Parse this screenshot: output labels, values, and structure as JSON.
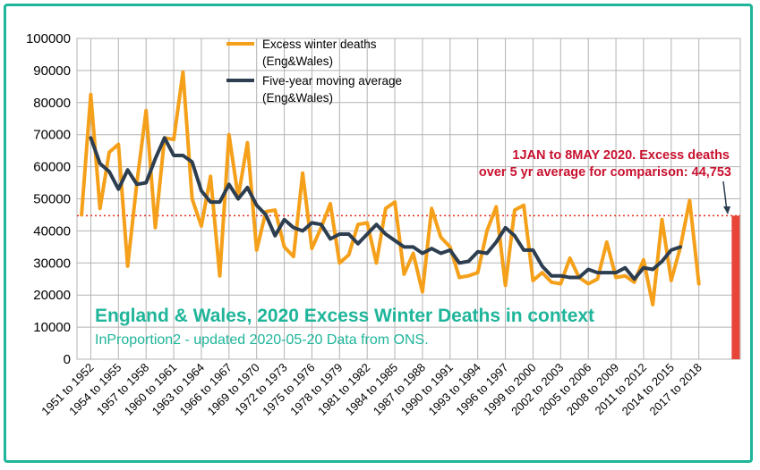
{
  "chart_data": {
    "type": "line",
    "title": "England & Wales, 2020 Excess Winter Deaths in context",
    "subtitle": "InProportion2 - updated 2020-05-20 Data from ONS.",
    "ylim": [
      0,
      100000
    ],
    "y_ticks": [
      "0",
      "10000",
      "20000",
      "30000",
      "40000",
      "50000",
      "60000",
      "70000",
      "80000",
      "90000",
      "100000"
    ],
    "grid": true,
    "legend_position": "top-center",
    "x_tick_labels": [
      "1951 to 1952",
      "1954 to 1955",
      "1957 to 1958",
      "1960 to 1961",
      "1963 to 1964",
      "1966 to 1967",
      "1969 to 1970",
      "1972 to 1973",
      "1975 to 1976",
      "1978 to 1979",
      "1981 to 1982",
      "1984 to 1985",
      "1987 to 1988",
      "1990 to 1991",
      "1993 to 1994",
      "1996 to 1997",
      "1999 to 2000",
      "2002 to 2003",
      "2005 to 2006",
      "2008 to 2009",
      "2011 to 2012",
      "2014 to 2015",
      "2017 to 2018"
    ],
    "x_start_year": 1950,
    "series": [
      {
        "name": "Excess winter deaths (Eng&Wales)",
        "name_lines": [
          "Excess winter deaths",
          "(Eng&Wales)"
        ],
        "color": "#f5a01a",
        "start_index": 0,
        "values": [
          45000,
          82500,
          47000,
          64500,
          67000,
          29000,
          55000,
          77500,
          41000,
          69000,
          68500,
          89500,
          50000,
          41500,
          57000,
          26000,
          70000,
          50500,
          67500,
          34000,
          46000,
          46500,
          35000,
          32000,
          58000,
          34500,
          41000,
          48500,
          30000,
          32500,
          42000,
          42500,
          30000,
          47000,
          49000,
          26500,
          33000,
          21000,
          47000,
          38000,
          35000,
          25500,
          26000,
          27000,
          40000,
          47500,
          23000,
          46500,
          48000,
          24500,
          27000,
          24000,
          23500,
          31500,
          25500,
          23500,
          25000,
          36500,
          25500,
          26000,
          24000,
          31000,
          17000,
          43500,
          24500,
          35000,
          49500,
          23500
        ]
      },
      {
        "name": "Five-year moving average (Eng&Wales)",
        "name_lines": [
          "Five-year moving average",
          "(Eng&Wales)"
        ],
        "color": "#2d3e50",
        "start_index": 1,
        "values": [
          69000,
          61000,
          58500,
          53000,
          59000,
          54500,
          55000,
          62500,
          69000,
          63500,
          63500,
          61500,
          52500,
          49000,
          49000,
          54500,
          50000,
          53500,
          48000,
          45000,
          38500,
          43500,
          41000,
          40000,
          42500,
          42000,
          37500,
          39000,
          39000,
          36000,
          39000,
          42000,
          39000,
          37000,
          35000,
          35000,
          33000,
          34500,
          33000,
          34000,
          30000,
          30500,
          33500,
          33000,
          36500,
          41000,
          38500,
          34000,
          34000,
          29000,
          26000,
          26000,
          25500,
          25500,
          28000,
          27000,
          27000,
          27000,
          28500,
          25000,
          28500,
          28000,
          30500,
          34000,
          35000
        ]
      }
    ],
    "reference_line": {
      "value": 44753,
      "color": "#e62d20",
      "style": "dotted"
    },
    "highlight_bar": {
      "label": "2020",
      "value": 44753,
      "color": "#e84538"
    },
    "annotation": {
      "lines": [
        "1JAN to 8MAY 2020. Excess deaths",
        "over 5 yr average for comparison: 44,753"
      ],
      "color": "#c8102e"
    }
  }
}
